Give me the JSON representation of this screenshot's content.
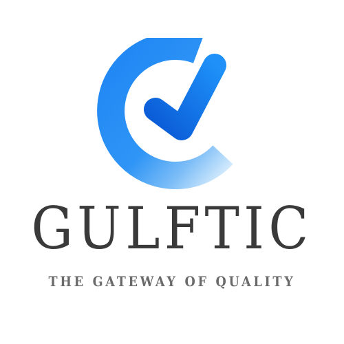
{
  "logo": {
    "icon": "e-checkmark-logo-icon",
    "colors": {
      "primary_blue": "#1a7cf0",
      "dark_blue": "#0b5fd8",
      "light_blue": "#c8e4fb"
    }
  },
  "brand": {
    "name": "GULFTIC",
    "tagline": "THE GATEWAY OF QUALITY",
    "text_color": "#3a3a3a",
    "tagline_color": "#6a6a6a"
  }
}
